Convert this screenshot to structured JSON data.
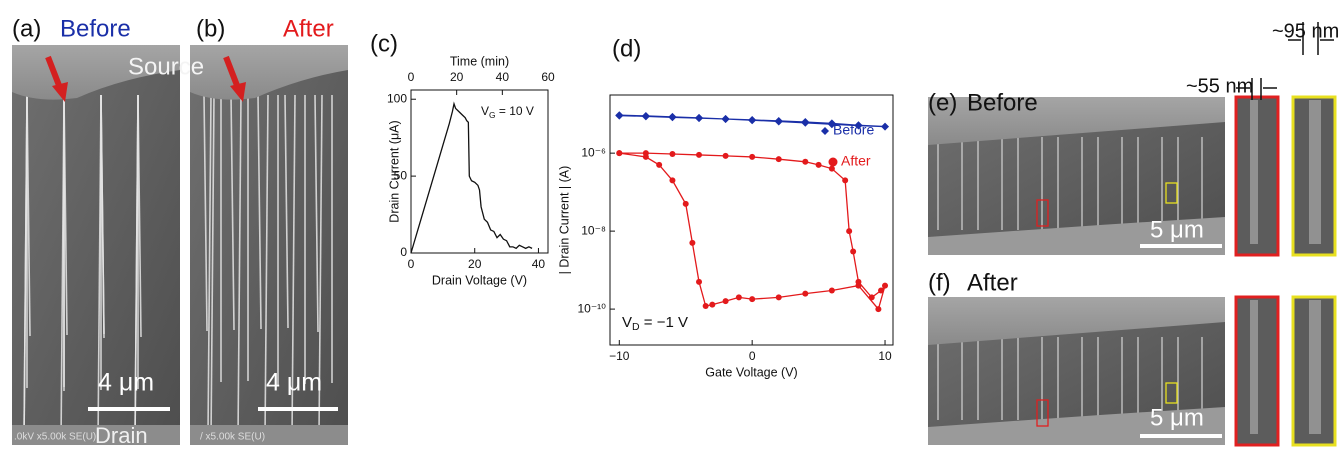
{
  "panels": {
    "a": {
      "label": "(a)",
      "title": "Before",
      "top": "Source",
      "bottom": "Drain",
      "scale": "4 μm",
      "footer": ".0kV x5.00k SE(U)"
    },
    "b": {
      "label": "(b)",
      "title": "After",
      "scale": "4 μm",
      "footer": "/ x5.00k SE(U)"
    },
    "e": {
      "label": "(e)",
      "title": "Before",
      "scale": "5 μm",
      "width_small": "~55 nm",
      "width_large": "~95 nm"
    },
    "f": {
      "label": "(f)",
      "title": "After",
      "scale": "5 μm"
    }
  },
  "chart_data": [
    {
      "type": "line",
      "label": "(c)",
      "xlabel": "Drain Voltage (V)",
      "ylabel": "Drain Current (μA)",
      "x2label": "Time (min)",
      "annotation": {
        "text": "V",
        "sub": "G",
        "rest": " = 10 V"
      },
      "xlim": [
        0,
        43
      ],
      "xticks": [
        0,
        20,
        40
      ],
      "ylim": [
        0,
        106
      ],
      "yticks": [
        0,
        50,
        100
      ],
      "x2lim": [
        0,
        60
      ],
      "x2ticks": [
        0,
        20,
        40,
        60
      ],
      "color": "#111111",
      "x": [
        0,
        2,
        4,
        6,
        8,
        10,
        12,
        13,
        13.5,
        14,
        15,
        16,
        17,
        17.5,
        18,
        18.3,
        19,
        20,
        21,
        21.5,
        22,
        23,
        24,
        25,
        26,
        27,
        28,
        29,
        30,
        31,
        32,
        33,
        34,
        35,
        36,
        37,
        38
      ],
      "values": [
        0,
        14,
        28,
        42,
        56,
        70,
        84,
        92,
        97,
        94,
        92,
        90,
        88,
        86,
        85,
        50,
        47,
        46,
        44,
        41,
        30,
        22,
        20,
        15,
        14,
        10,
        12,
        9,
        8,
        4,
        4,
        3,
        5,
        4,
        3,
        4,
        3
      ]
    },
    {
      "type": "line",
      "label": "(d)",
      "xlabel": "Gate Voltage (V)",
      "ylabel": "| Drain Current | (A)",
      "log_y": true,
      "annotation": {
        "text": "V",
        "sub": "D",
        "rest": " = −1 V"
      },
      "xlim": [
        -10.7,
        10.6
      ],
      "xticks": [
        {
          "value": -10,
          "label": "−10"
        },
        0,
        10
      ],
      "ylim": [
        1.2e-11,
        3.1e-05
      ],
      "yticks": [
        {
          "value": 1e-06,
          "label": "10⁻⁶"
        },
        {
          "value": 1e-08,
          "label": "10⁻⁸"
        },
        {
          "value": 1e-10,
          "label": "10⁻¹⁰"
        }
      ],
      "series": [
        {
          "name": "Before",
          "color": "#1a2fa8",
          "marker": "diamond",
          "x": [
            -10,
            -8,
            -6,
            -4,
            -2,
            0,
            2,
            4,
            6,
            8,
            10,
            8,
            6,
            4,
            2,
            0,
            -2,
            -4,
            -6,
            -8,
            -10
          ],
          "values": [
            9.4e-06,
            9e-06,
            8.5e-06,
            8e-06,
            7.5e-06,
            7e-06,
            6.5e-06,
            6e-06,
            5.5e-06,
            5.1e-06,
            4.8e-06,
            5.2e-06,
            5.8e-06,
            6.3e-06,
            6.7e-06,
            7.1e-06,
            7.5e-06,
            7.9e-06,
            8.3e-06,
            8.8e-06,
            9.2e-06
          ]
        },
        {
          "name": "After",
          "color": "#e31a1c",
          "marker": "circle",
          "x": [
            -10,
            -8,
            -6,
            -4,
            -2,
            0,
            2,
            4,
            5,
            6,
            7,
            7.3,
            7.6,
            8,
            9,
            9.7,
            10,
            9.5,
            8,
            6,
            4,
            2,
            0,
            -1,
            -2,
            -3,
            -3.5,
            -4,
            -4.5,
            -5,
            -6,
            -7,
            -8,
            -10
          ],
          "values": [
            1e-06,
            1e-06,
            9.5e-07,
            9e-07,
            8.5e-07,
            8e-07,
            7e-07,
            6e-07,
            5e-07,
            4e-07,
            2e-07,
            1e-08,
            3e-09,
            5e-10,
            2e-10,
            3e-10,
            4e-10,
            1e-10,
            4e-10,
            3e-10,
            2.5e-10,
            2e-10,
            1.8e-10,
            2e-10,
            1.6e-10,
            1.3e-10,
            1.2e-10,
            5e-10,
            5e-09,
            5e-08,
            2e-07,
            5e-07,
            8e-07,
            1e-06
          ]
        }
      ]
    }
  ]
}
